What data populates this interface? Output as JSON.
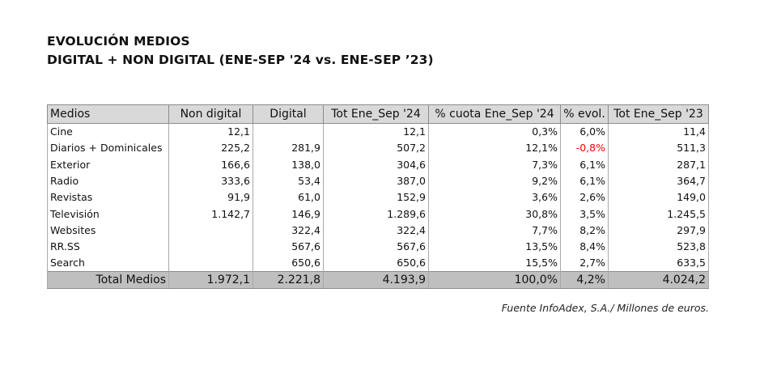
{
  "title": {
    "line1": "EVOLUCIÓN MEDIOS",
    "line2": "DIGITAL + NON DIGITAL (ENE-SEP '24 vs. ENE-SEP ’23)"
  },
  "table": {
    "headers": [
      "Medios",
      "Non digital",
      "Digital",
      "Tot Ene_Sep '24",
      "% cuota Ene_Sep '24",
      "% evol.",
      "Tot Ene_Sep '23"
    ],
    "rows": [
      [
        "Cine",
        "12,1",
        "",
        "12,1",
        "0,3%",
        "6,0%",
        "11,4"
      ],
      [
        "Diarios + Dominicales",
        "225,2",
        "281,9",
        "507,2",
        "12,1%",
        "-0,8%",
        "511,3"
      ],
      [
        "Exterior",
        "166,6",
        "138,0",
        "304,6",
        "7,3%",
        "6,1%",
        "287,1"
      ],
      [
        "Radio",
        "333,6",
        "53,4",
        "387,0",
        "9,2%",
        "6,1%",
        "364,7"
      ],
      [
        "Revistas",
        "91,9",
        "61,0",
        "152,9",
        "3,6%",
        "2,6%",
        "149,0"
      ],
      [
        "Televisión",
        "1.142,7",
        "146,9",
        "1.289,6",
        "30,8%",
        "3,5%",
        "1.245,5"
      ],
      [
        "Websites",
        "",
        "322,4",
        "322,4",
        "7,7%",
        "8,2%",
        "297,9"
      ],
      [
        "RR.SS",
        "",
        "567,6",
        "567,6",
        "13,5%",
        "8,4%",
        "523,8"
      ],
      [
        "Search",
        "",
        "650,6",
        "650,6",
        "15,5%",
        "2,7%",
        "633,5"
      ]
    ],
    "total": [
      "Total Medios",
      "1.972,1",
      "2.221,8",
      "4.193,9",
      "100,0%",
      "4,2%",
      "4.024,2"
    ],
    "negative_color": "#ff0000"
  },
  "source": "Fuente InfoAdex, S.A./ Millones de euros."
}
